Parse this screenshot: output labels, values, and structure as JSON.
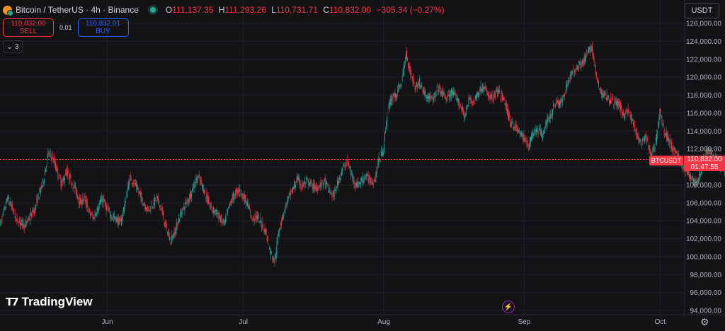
{
  "header": {
    "symbol": "Bitcoin / TetherUS · 4h · Binance",
    "open_label": "O",
    "open": "111,137.35",
    "high_label": "H",
    "high": "111,293.26",
    "low_label": "L",
    "low": "110,731.71",
    "close_label": "C",
    "close": "110,832.00",
    "change": "−305.34 (−0.27%)"
  },
  "trade": {
    "sell_price": "110,832.00",
    "sell_label": "SELL",
    "spread": "0.01",
    "buy_price": "110,832.01",
    "buy_label": "BUY"
  },
  "indicators_toggle": {
    "count": "3",
    "icon": "chevron-down-icon"
  },
  "currency": "USDT",
  "brand": "TradingView",
  "colors": {
    "up": "#26a69a",
    "down": "#f23645",
    "background": "#131315",
    "last_price_line": "#f23645"
  },
  "chart_data": {
    "type": "candlestick",
    "series": [
      {
        "name": "BTCUSDT",
        "interval": "4h"
      }
    ],
    "last_price": {
      "symbol": "BTCUSDT",
      "price_label": "110,832.00",
      "countdown": "01:47:55",
      "value": 110832
    },
    "yaxis": {
      "ticks": [
        "94,000.00",
        "96,000.00",
        "98,000.00",
        "100,000.00",
        "102,000.00",
        "104,000.00",
        "106,000.00",
        "108,000.00",
        "110,000.00",
        "112,000.00",
        "114,000.00",
        "116,000.00",
        "118,000.00",
        "120,000.00",
        "122,000.00",
        "124,000.00",
        "126,000.00"
      ],
      "ylim": [
        93500,
        127500
      ]
    },
    "xaxis": {
      "ticks": [
        {
          "label": "Jun",
          "date": "2025-06-01"
        },
        {
          "label": "Jul",
          "date": "2025-07-01"
        },
        {
          "label": "Aug",
          "date": "2025-08-01"
        },
        {
          "label": "Sep",
          "date": "2025-09-01"
        },
        {
          "label": "Oct",
          "date": "2025-10-01"
        }
      ],
      "xlim": [
        "2025-05-08",
        "2025-10-17"
      ]
    },
    "grid": true,
    "path_shape": {
      "description": "daily approximate closes from chart",
      "start_date": "2025-05-08",
      "closes": [
        103000,
        104500,
        106500,
        105500,
        104000,
        103800,
        103500,
        104500,
        105200,
        107000,
        108500,
        111500,
        111000,
        109500,
        108000,
        109500,
        108500,
        107500,
        106000,
        106500,
        105000,
        104300,
        105500,
        106500,
        105200,
        104500,
        104200,
        103800,
        106000,
        108800,
        108200,
        107200,
        106000,
        105200,
        105800,
        106500,
        105300,
        103200,
        101800,
        102800,
        104500,
        105500,
        106500,
        107700,
        108900,
        108000,
        106500,
        105300,
        105000,
        104200,
        103600,
        105800,
        106800,
        107500,
        106800,
        105800,
        104200,
        104500,
        103800,
        102800,
        100500,
        99500,
        103200,
        105000,
        106500,
        107500,
        108700,
        107800,
        108400,
        108000,
        107600,
        108000,
        108400,
        107300,
        106800,
        108400,
        109800,
        110600,
        109000,
        108000,
        108300,
        109000,
        108500,
        108400,
        110800,
        112000,
        116500,
        117800,
        118200,
        119500,
        122600,
        120400,
        118900,
        119400,
        118200,
        117800,
        117400,
        118800,
        118200,
        117600,
        118300,
        117700,
        116800,
        115600,
        117700,
        117200,
        118400,
        118900,
        118100,
        117600,
        118400,
        118000,
        116800,
        115000,
        114500,
        113800,
        113200,
        112300,
        113800,
        114200,
        113600,
        114900,
        115900,
        117300,
        116900,
        118400,
        119900,
        120700,
        121400,
        121600,
        122600,
        123400,
        119800,
        118200,
        118000,
        117500,
        117200,
        116900,
        115800,
        116300,
        114800,
        113400,
        112500,
        113300,
        111200,
        112500,
        116200,
        113800,
        113100,
        111800,
        111200,
        110000,
        109500,
        108800,
        108200,
        109300,
        111400,
        111800,
        111000,
        110300,
        109700,
        108600,
        110800,
        111600,
        111900,
        112200,
        111300,
        110800,
        111100
      ]
    }
  }
}
